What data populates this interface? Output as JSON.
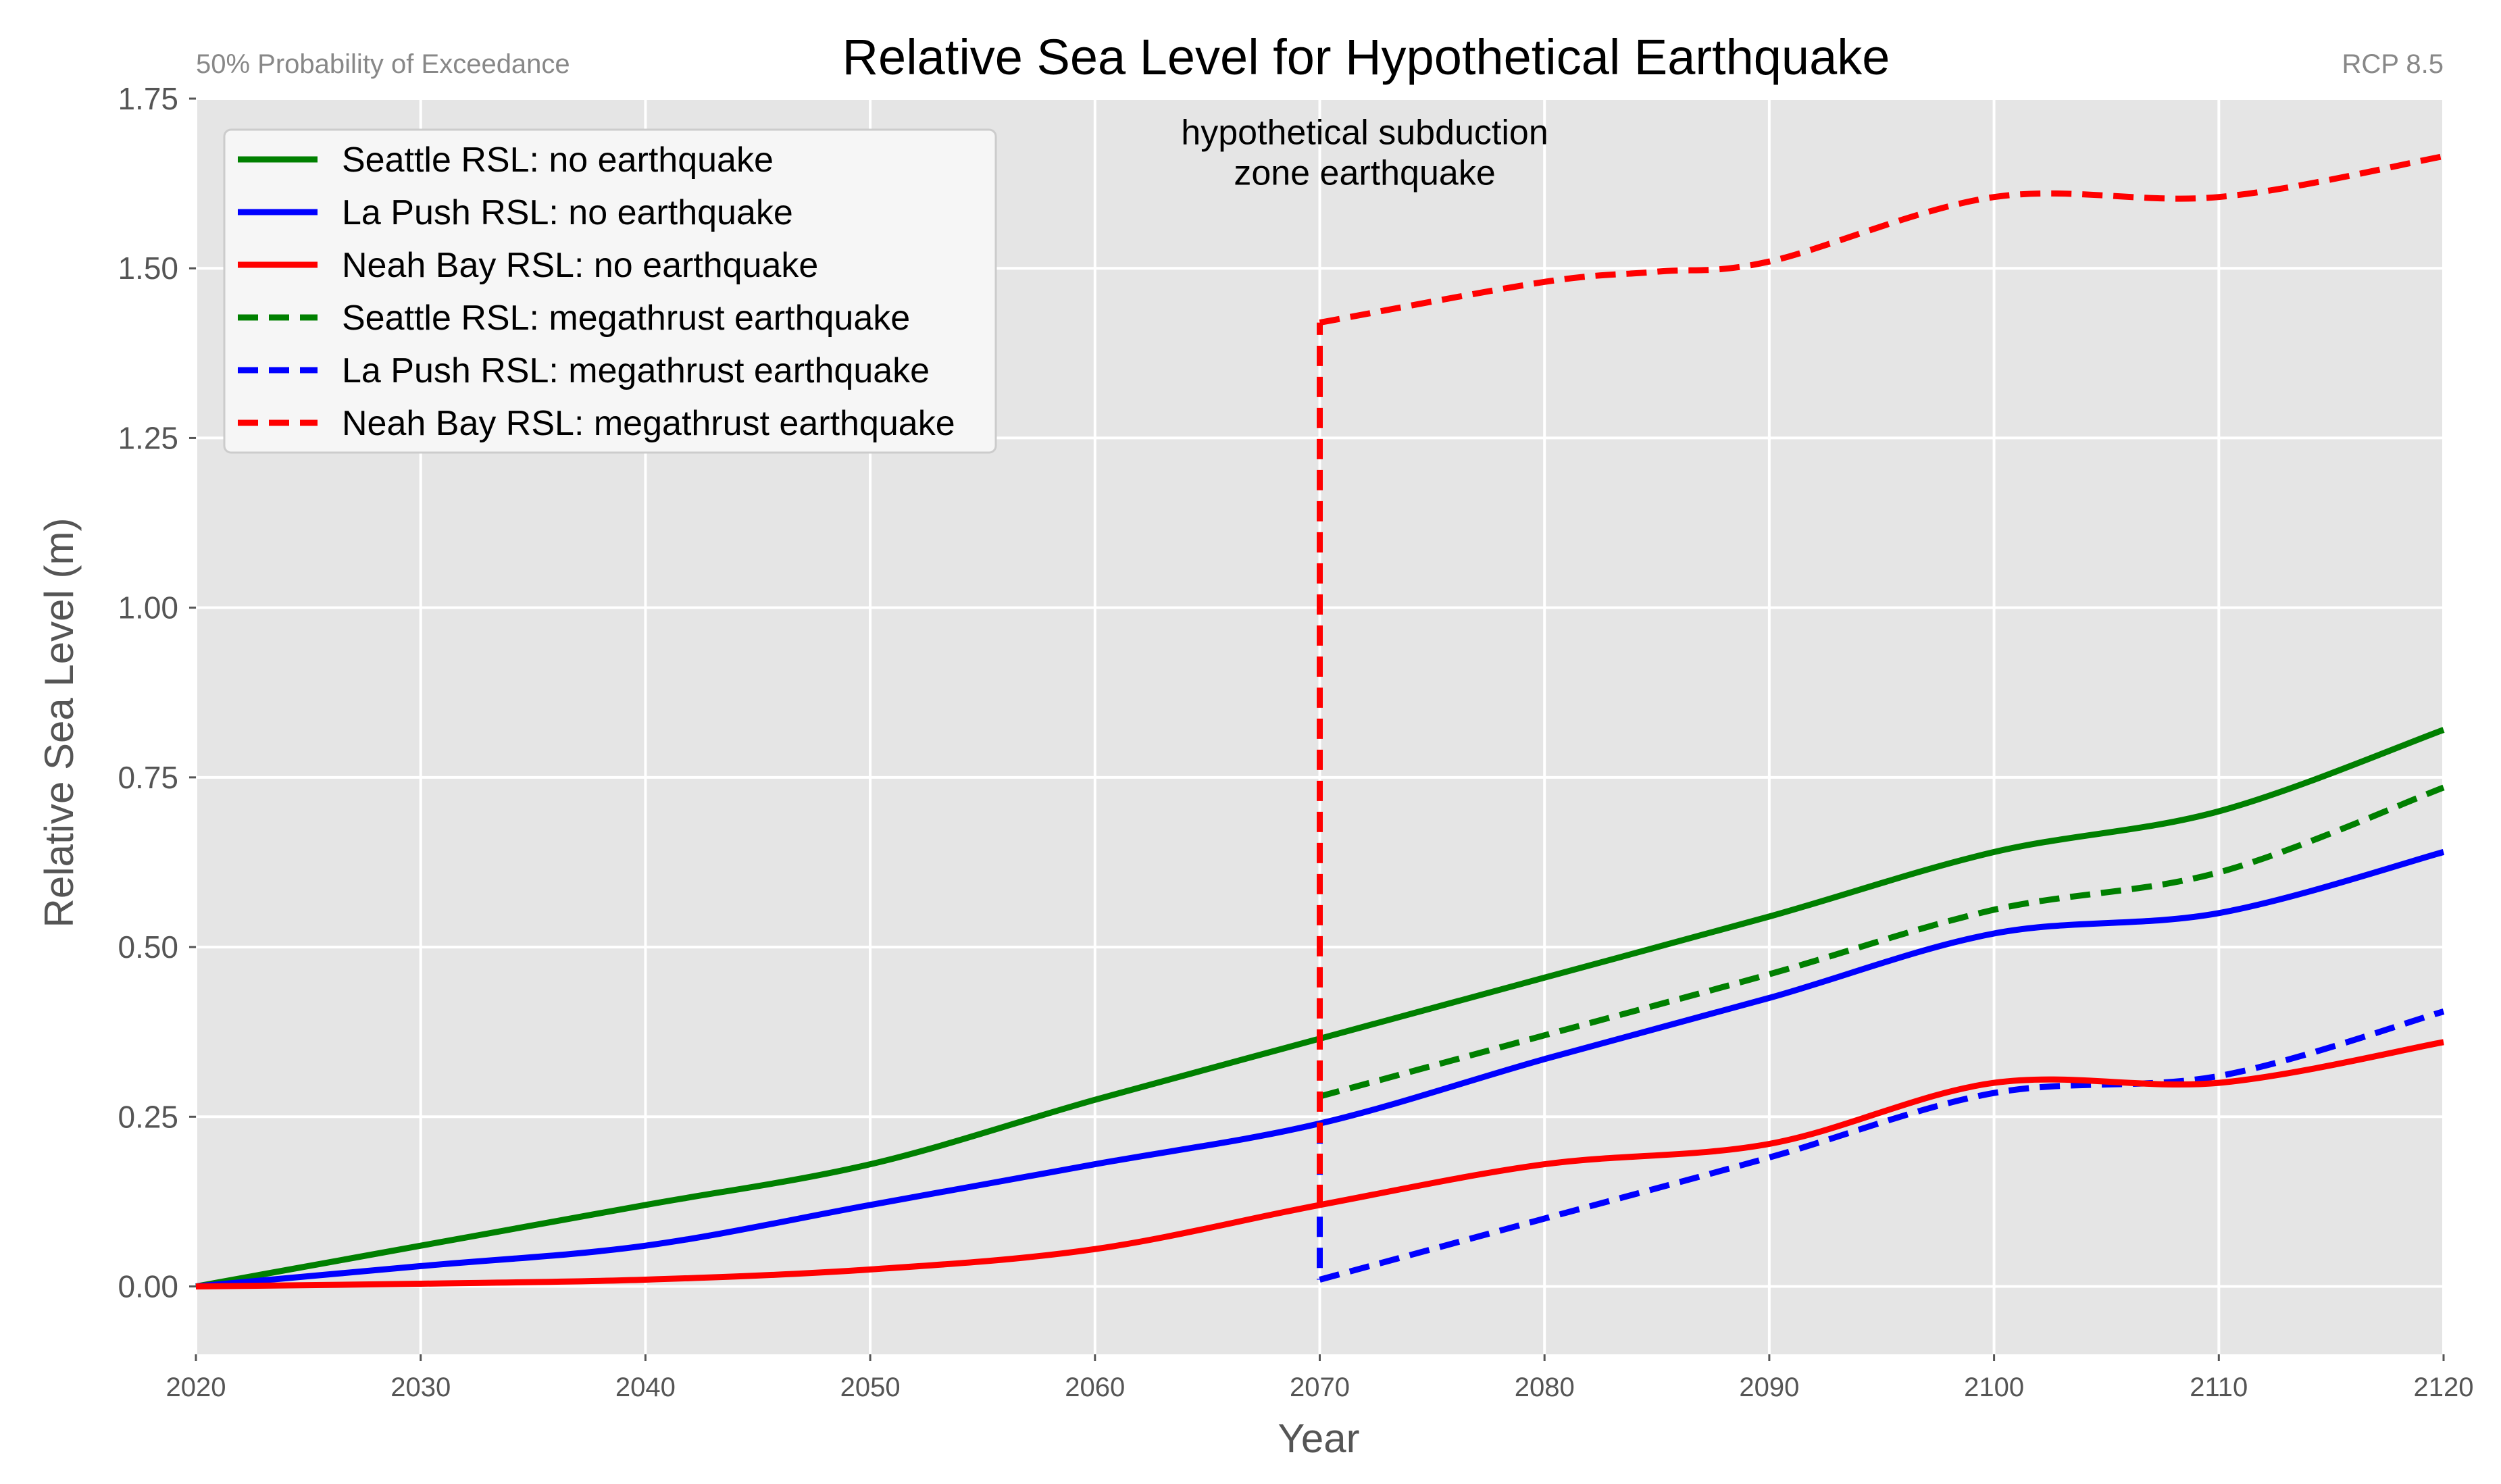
{
  "chart_data": {
    "type": "line",
    "title": "Relative Sea Level for Hypothetical Earthquake",
    "subtitle_left": "50% Probability of Exceedance",
    "subtitle_right": "RCP 8.5",
    "xlabel": "Year",
    "ylabel": "Relative Sea Level (m)",
    "xlim": [
      2020,
      2120
    ],
    "ylim": [
      -0.1,
      1.75
    ],
    "x_ticks": [
      2020,
      2030,
      2040,
      2050,
      2060,
      2070,
      2080,
      2090,
      2100,
      2110,
      2120
    ],
    "x_tick_labels": [
      "2020",
      "2030",
      "2040",
      "2050",
      "2060",
      "2070",
      "2080",
      "2090",
      "2100",
      "2110",
      "2120"
    ],
    "y_ticks": [
      0.0,
      0.25,
      0.5,
      0.75,
      1.0,
      1.25,
      1.5,
      1.75
    ],
    "y_tick_labels": [
      "0.00",
      "0.25",
      "0.50",
      "0.75",
      "1.00",
      "1.25",
      "1.50",
      "1.75"
    ],
    "grid": true,
    "legend_position": "top-left",
    "annotation": {
      "lines": [
        "hypothetical subduction",
        "zone earthquake"
      ],
      "x": 2072,
      "y": 1.655
    },
    "series": [
      {
        "name": "Seattle RSL: no earthquake",
        "color": "#008000",
        "style": "solid",
        "x": [
          2020,
          2030,
          2040,
          2050,
          2060,
          2070,
          2080,
          2090,
          2100,
          2110,
          2120
        ],
        "y": [
          0.0,
          0.06,
          0.12,
          0.18,
          0.275,
          0.365,
          0.455,
          0.545,
          0.64,
          0.7,
          0.82
        ]
      },
      {
        "name": "La Push RSL: no earthquake",
        "color": "#0000ff",
        "style": "solid",
        "x": [
          2020,
          2030,
          2040,
          2050,
          2060,
          2070,
          2080,
          2090,
          2100,
          2110,
          2120
        ],
        "y": [
          0.0,
          0.03,
          0.06,
          0.12,
          0.18,
          0.24,
          0.335,
          0.425,
          0.52,
          0.55,
          0.64
        ]
      },
      {
        "name": "Neah Bay RSL: no earthquake",
        "color": "#ff0000",
        "style": "solid",
        "x": [
          2020,
          2030,
          2040,
          2050,
          2060,
          2070,
          2080,
          2090,
          2100,
          2110,
          2120
        ],
        "y": [
          0.0,
          0.004,
          0.01,
          0.025,
          0.055,
          0.12,
          0.18,
          0.21,
          0.3,
          0.3,
          0.36
        ]
      },
      {
        "name": "Seattle RSL: megathrust earthquake",
        "color": "#008000",
        "style": "dashed",
        "x": [
          2070,
          2080,
          2090,
          2100,
          2110,
          2120
        ],
        "y": [
          0.28,
          0.37,
          0.46,
          0.555,
          0.61,
          0.735
        ]
      },
      {
        "name": "La Push RSL: megathrust earthquake",
        "color": "#0000ff",
        "style": "dashed",
        "x": [
          2070,
          2070,
          2080,
          2090,
          2100,
          2110,
          2120
        ],
        "y": [
          0.24,
          0.01,
          0.1,
          0.19,
          0.285,
          0.31,
          0.405
        ]
      },
      {
        "name": "Neah Bay RSL: megathrust earthquake",
        "color": "#ff0000",
        "style": "dashed",
        "x": [
          2070,
          2070,
          2080,
          2085,
          2090,
          2100,
          2110,
          2120
        ],
        "y": [
          0.12,
          1.42,
          1.48,
          1.495,
          1.51,
          1.605,
          1.605,
          1.665
        ]
      }
    ]
  }
}
